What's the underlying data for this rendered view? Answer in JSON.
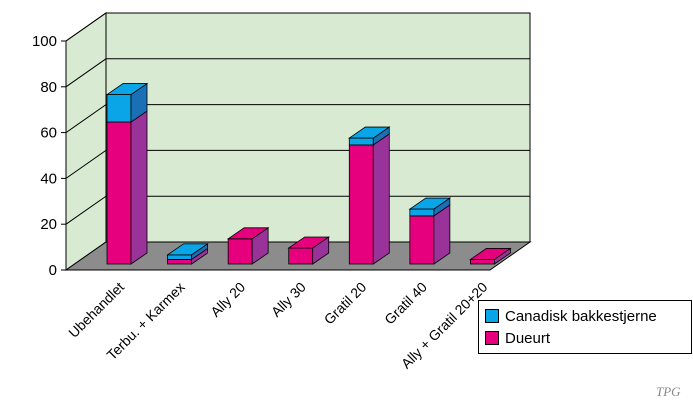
{
  "chart_data": {
    "type": "bar",
    "stacked": true,
    "three_d": true,
    "categories": [
      "Ubehandlet",
      "Terbu. + Karmex",
      "Ally 20",
      "Ally 30",
      "Gratil 20",
      "Gratil 40",
      "Ally + Gratil 20+20"
    ],
    "series": [
      {
        "name": "Dueurt",
        "values": [
          62,
          2,
          11,
          7,
          52,
          21,
          2
        ],
        "color": "#e6007e",
        "side_color": "#993399"
      },
      {
        "name": "Canadisk bakkestjerne",
        "values": [
          12,
          2,
          0,
          0,
          3,
          3,
          0
        ],
        "color": "#0aa5e6",
        "side_color": "#1a6fb5"
      }
    ],
    "yticks": [
      "0",
      "20",
      "40",
      "60",
      "80",
      "100"
    ],
    "ylim": [
      0,
      100
    ],
    "grid": true,
    "wall_color": "#d8ead2",
    "floor_color": "#8c8c8c",
    "legend_position": "bottom-right"
  },
  "logo_text": "TPG"
}
